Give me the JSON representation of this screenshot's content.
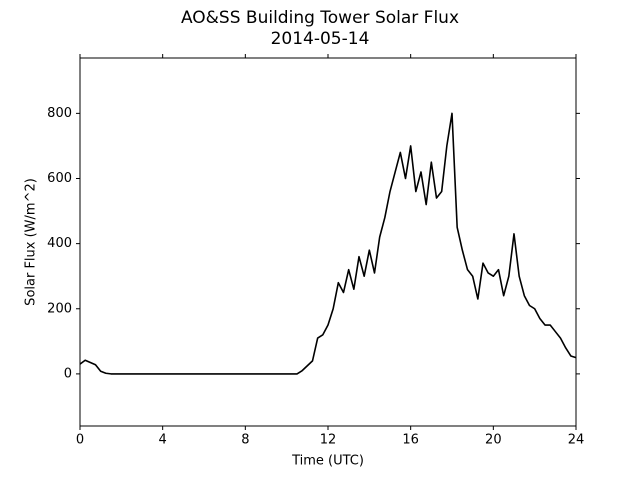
{
  "chart_data": {
    "type": "line",
    "title": "AO&SS Building Tower Solar Flux",
    "subtitle": "2014-05-14",
    "x_label": "Time (UTC)",
    "y_label": "Solar Flux (W/m^2)",
    "x": [
      0,
      0.25,
      0.5,
      0.75,
      1,
      1.25,
      1.5,
      1.75,
      2,
      2.25,
      2.5,
      2.75,
      3,
      3.25,
      3.5,
      3.75,
      4,
      4.25,
      4.5,
      4.75,
      5,
      5.25,
      5.5,
      5.75,
      6,
      6.25,
      6.5,
      6.75,
      7,
      7.25,
      7.5,
      7.75,
      8,
      8.25,
      8.5,
      8.75,
      9,
      9.25,
      9.5,
      9.75,
      10,
      10.25,
      10.5,
      10.75,
      11,
      11.25,
      11.5,
      11.75,
      12,
      12.25,
      12.5,
      12.75,
      13,
      13.25,
      13.5,
      13.75,
      14,
      14.25,
      14.5,
      14.75,
      15,
      15.25,
      15.5,
      15.75,
      16,
      16.25,
      16.5,
      16.75,
      17,
      17.25,
      17.5,
      17.75,
      18,
      18.25,
      18.5,
      18.75,
      19,
      19.25,
      19.5,
      19.75,
      20,
      20.25,
      20.5,
      20.75,
      21,
      21.25,
      21.5,
      21.75,
      22,
      22.25,
      22.5,
      22.75,
      23,
      23.25,
      23.5,
      23.75,
      24
    ],
    "series": [
      {
        "color": "#000000",
        "values": [
          30,
          42,
          35,
          28,
          8,
          2,
          0,
          0,
          0,
          0,
          0,
          0,
          0,
          0,
          0,
          0,
          0,
          0,
          0,
          0,
          0,
          0,
          0,
          0,
          0,
          0,
          0,
          0,
          0,
          0,
          0,
          0,
          0,
          0,
          0,
          0,
          0,
          0,
          0,
          0,
          0,
          0,
          0,
          10,
          25,
          40,
          110,
          120,
          150,
          200,
          280,
          250,
          320,
          260,
          360,
          300,
          380,
          310,
          420,
          480,
          560,
          620,
          680,
          600,
          700,
          560,
          620,
          520,
          650,
          540,
          560,
          700,
          800,
          450,
          380,
          320,
          300,
          230,
          340,
          310,
          300,
          320,
          240,
          300,
          430,
          300,
          240,
          210,
          200,
          170,
          150,
          150,
          130,
          110,
          80,
          55,
          50
        ]
      }
    ],
    "xlim": [
      0,
      24
    ],
    "xticks": [
      0,
      4,
      8,
      12,
      16,
      20,
      24
    ],
    "ylim": [
      -160,
      970
    ],
    "yticks": [
      0,
      200,
      400,
      600,
      800
    ]
  }
}
